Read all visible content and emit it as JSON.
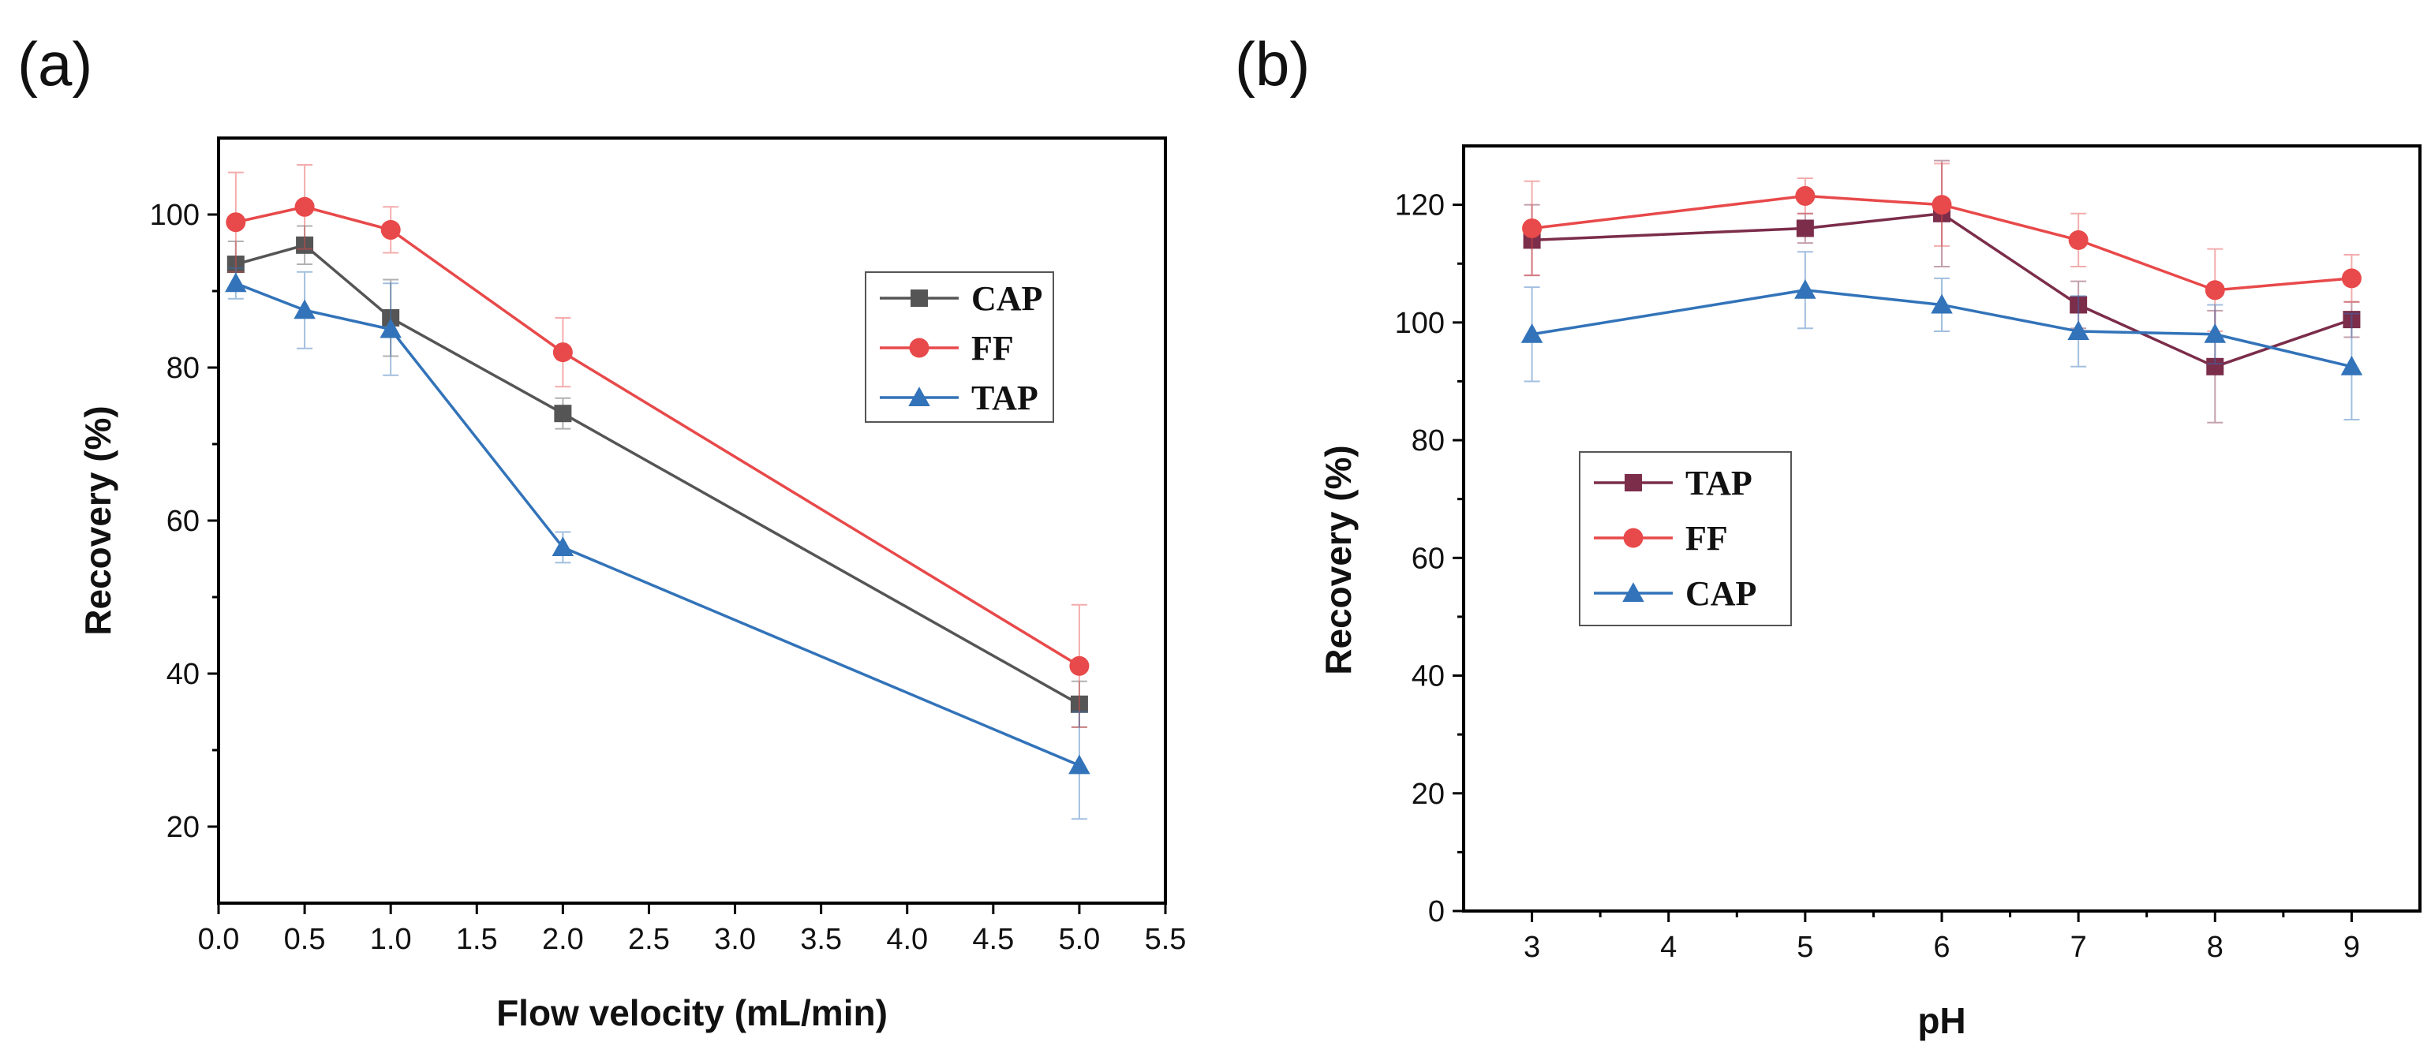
{
  "chart_data": [
    {
      "id": "a",
      "type": "line",
      "panel_label": "(a)",
      "xlabel": "Flow velocity (mL/min)",
      "ylabel": "Recovery (%)",
      "xlim": [
        0.0,
        5.5
      ],
      "ylim": [
        10,
        110
      ],
      "xticks": [
        0.0,
        0.5,
        1.0,
        1.5,
        2.0,
        2.5,
        3.0,
        3.5,
        4.0,
        4.5,
        5.0,
        5.5
      ],
      "xtick_labels": [
        "0.0",
        "0.5",
        "1.0",
        "1.5",
        "2.0",
        "2.5",
        "3.0",
        "3.5",
        "4.0",
        "4.5",
        "5.0",
        "5.5"
      ],
      "yticks": [
        20,
        40,
        60,
        80,
        100
      ],
      "ytick_labels": [
        "20",
        "40",
        "60",
        "80",
        "100"
      ],
      "x": [
        0.1,
        0.5,
        1.0,
        2.0,
        5.0
      ],
      "legend_position": "upper-right",
      "series": [
        {
          "name": "CAP",
          "color": "#555555",
          "marker": "square",
          "values": [
            93.5,
            96,
            86.5,
            74,
            36
          ],
          "errors": [
            3,
            2.5,
            5,
            2,
            3
          ]
        },
        {
          "name": "FF",
          "color": "#e8494a",
          "marker": "circle",
          "values": [
            99,
            101,
            98,
            82,
            41
          ],
          "errors": [
            6.5,
            5.5,
            3,
            4.5,
            8
          ]
        },
        {
          "name": "TAP",
          "color": "#3273b9",
          "marker": "triangle",
          "values": [
            91,
            87.5,
            85,
            56.5,
            28
          ],
          "errors": [
            2,
            5,
            6,
            2,
            7
          ]
        }
      ]
    },
    {
      "id": "b",
      "type": "line",
      "panel_label": "(b)",
      "xlabel": "pH",
      "ylabel": "Recovery (%)",
      "xlim": [
        2.5,
        9.5
      ],
      "ylim": [
        0,
        130
      ],
      "xticks": [
        3,
        4,
        5,
        6,
        7,
        8,
        9
      ],
      "xtick_labels": [
        "3",
        "4",
        "5",
        "6",
        "7",
        "8",
        "9"
      ],
      "yticks": [
        0,
        20,
        40,
        60,
        80,
        100,
        120
      ],
      "ytick_labels": [
        "0",
        "20",
        "40",
        "60",
        "80",
        "100",
        "120"
      ],
      "x": [
        3,
        5,
        6,
        7,
        8,
        9
      ],
      "legend_position": "lower-left",
      "series": [
        {
          "name": "TAP",
          "color": "#7b2d4a",
          "marker": "square",
          "values": [
            114,
            116,
            118.5,
            103,
            92.5,
            100.5
          ],
          "errors": [
            6,
            2.5,
            9,
            4,
            9.5,
            3
          ]
        },
        {
          "name": "FF",
          "color": "#e8494a",
          "marker": "circle",
          "values": [
            116,
            121.5,
            120,
            114,
            105.5,
            107.5
          ],
          "errors": [
            8,
            3,
            7,
            4.5,
            7,
            4
          ]
        },
        {
          "name": "CAP",
          "color": "#3273b9",
          "marker": "triangle",
          "values": [
            98,
            105.5,
            103,
            98.5,
            98,
            92.5
          ],
          "errors": [
            8,
            6.5,
            4.5,
            6,
            5,
            9
          ]
        }
      ]
    }
  ]
}
